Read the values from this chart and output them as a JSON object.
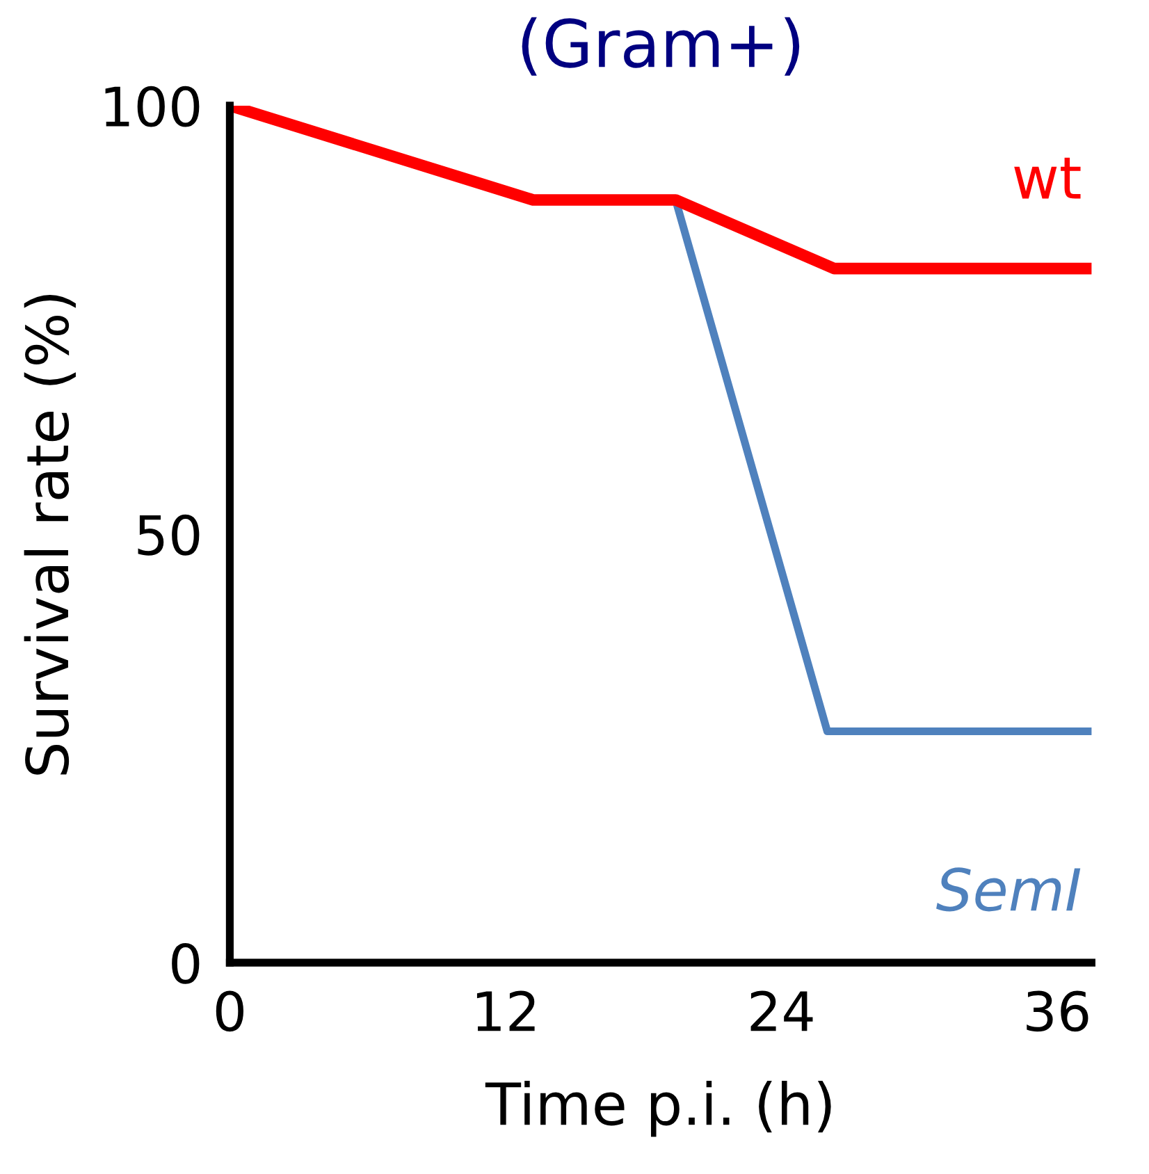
{
  "chart_data": {
    "type": "line",
    "title": "(Gram+)",
    "xlabel": "Time p.i. (h)",
    "ylabel": "Survival rate (%)",
    "xlim": [
      0,
      37.5
    ],
    "ylim": [
      0,
      100
    ],
    "xticks": [
      0,
      12,
      24,
      36
    ],
    "yticks": [
      0,
      50,
      100
    ],
    "grid": false,
    "legend": false,
    "marker": "none",
    "line_style": "solid",
    "series": [
      {
        "name": "SemI",
        "color": "#4f81bd",
        "x": [
          19.4,
          26.0,
          37.5
        ],
        "values": [
          89,
          27,
          27
        ]
      },
      {
        "name": "wt",
        "color": "#ff0000",
        "x": [
          0,
          13.2,
          19.4,
          26.3,
          37.5
        ],
        "values": [
          100,
          89,
          89,
          81,
          81
        ]
      }
    ]
  }
}
